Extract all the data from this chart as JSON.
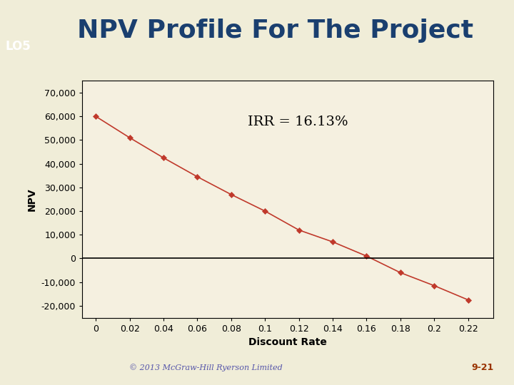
{
  "title": "NPV Profile For The Project",
  "lo_label": "LO5",
  "irr_label": "IRR = 16.13%",
  "xlabel": "Discount Rate",
  "ylabel": "NPV",
  "x_values": [
    0,
    0.02,
    0.04,
    0.06,
    0.08,
    0.1,
    0.12,
    0.14,
    0.16,
    0.18,
    0.2,
    0.22
  ],
  "y_values": [
    60000,
    51000,
    42500,
    34500,
    27000,
    20000,
    12000,
    7000,
    1000,
    -6000,
    -11500,
    -17500
  ],
  "line_color": "#c0392b",
  "marker_color": "#c0392b",
  "background_color": "#f0edd8",
  "chart_bg_color": "#f5f0e0",
  "header_bg_color": "#d4dfc0",
  "stripe_color": "#f0f070",
  "lo_bar_color": "#1a6080",
  "title_color": "#1a3f6f",
  "footer_text": "© 2013 McGraw-Hill Ryerson Limited",
  "footer_color": "#5555aa",
  "page_num": "9-21",
  "page_num_color": "#993300",
  "ylim": [
    -25000,
    75000
  ],
  "xlim": [
    -0.008,
    0.235
  ],
  "yticks": [
    -20000,
    -10000,
    0,
    10000,
    20000,
    30000,
    40000,
    50000,
    60000,
    70000
  ],
  "xticks": [
    0,
    0.02,
    0.04,
    0.06,
    0.08,
    0.1,
    0.12,
    0.14,
    0.16,
    0.18,
    0.2,
    0.22
  ],
  "title_fontsize": 26,
  "lo_fontsize": 12,
  "axis_fontsize": 9,
  "label_fontsize": 10,
  "irr_fontsize": 14
}
